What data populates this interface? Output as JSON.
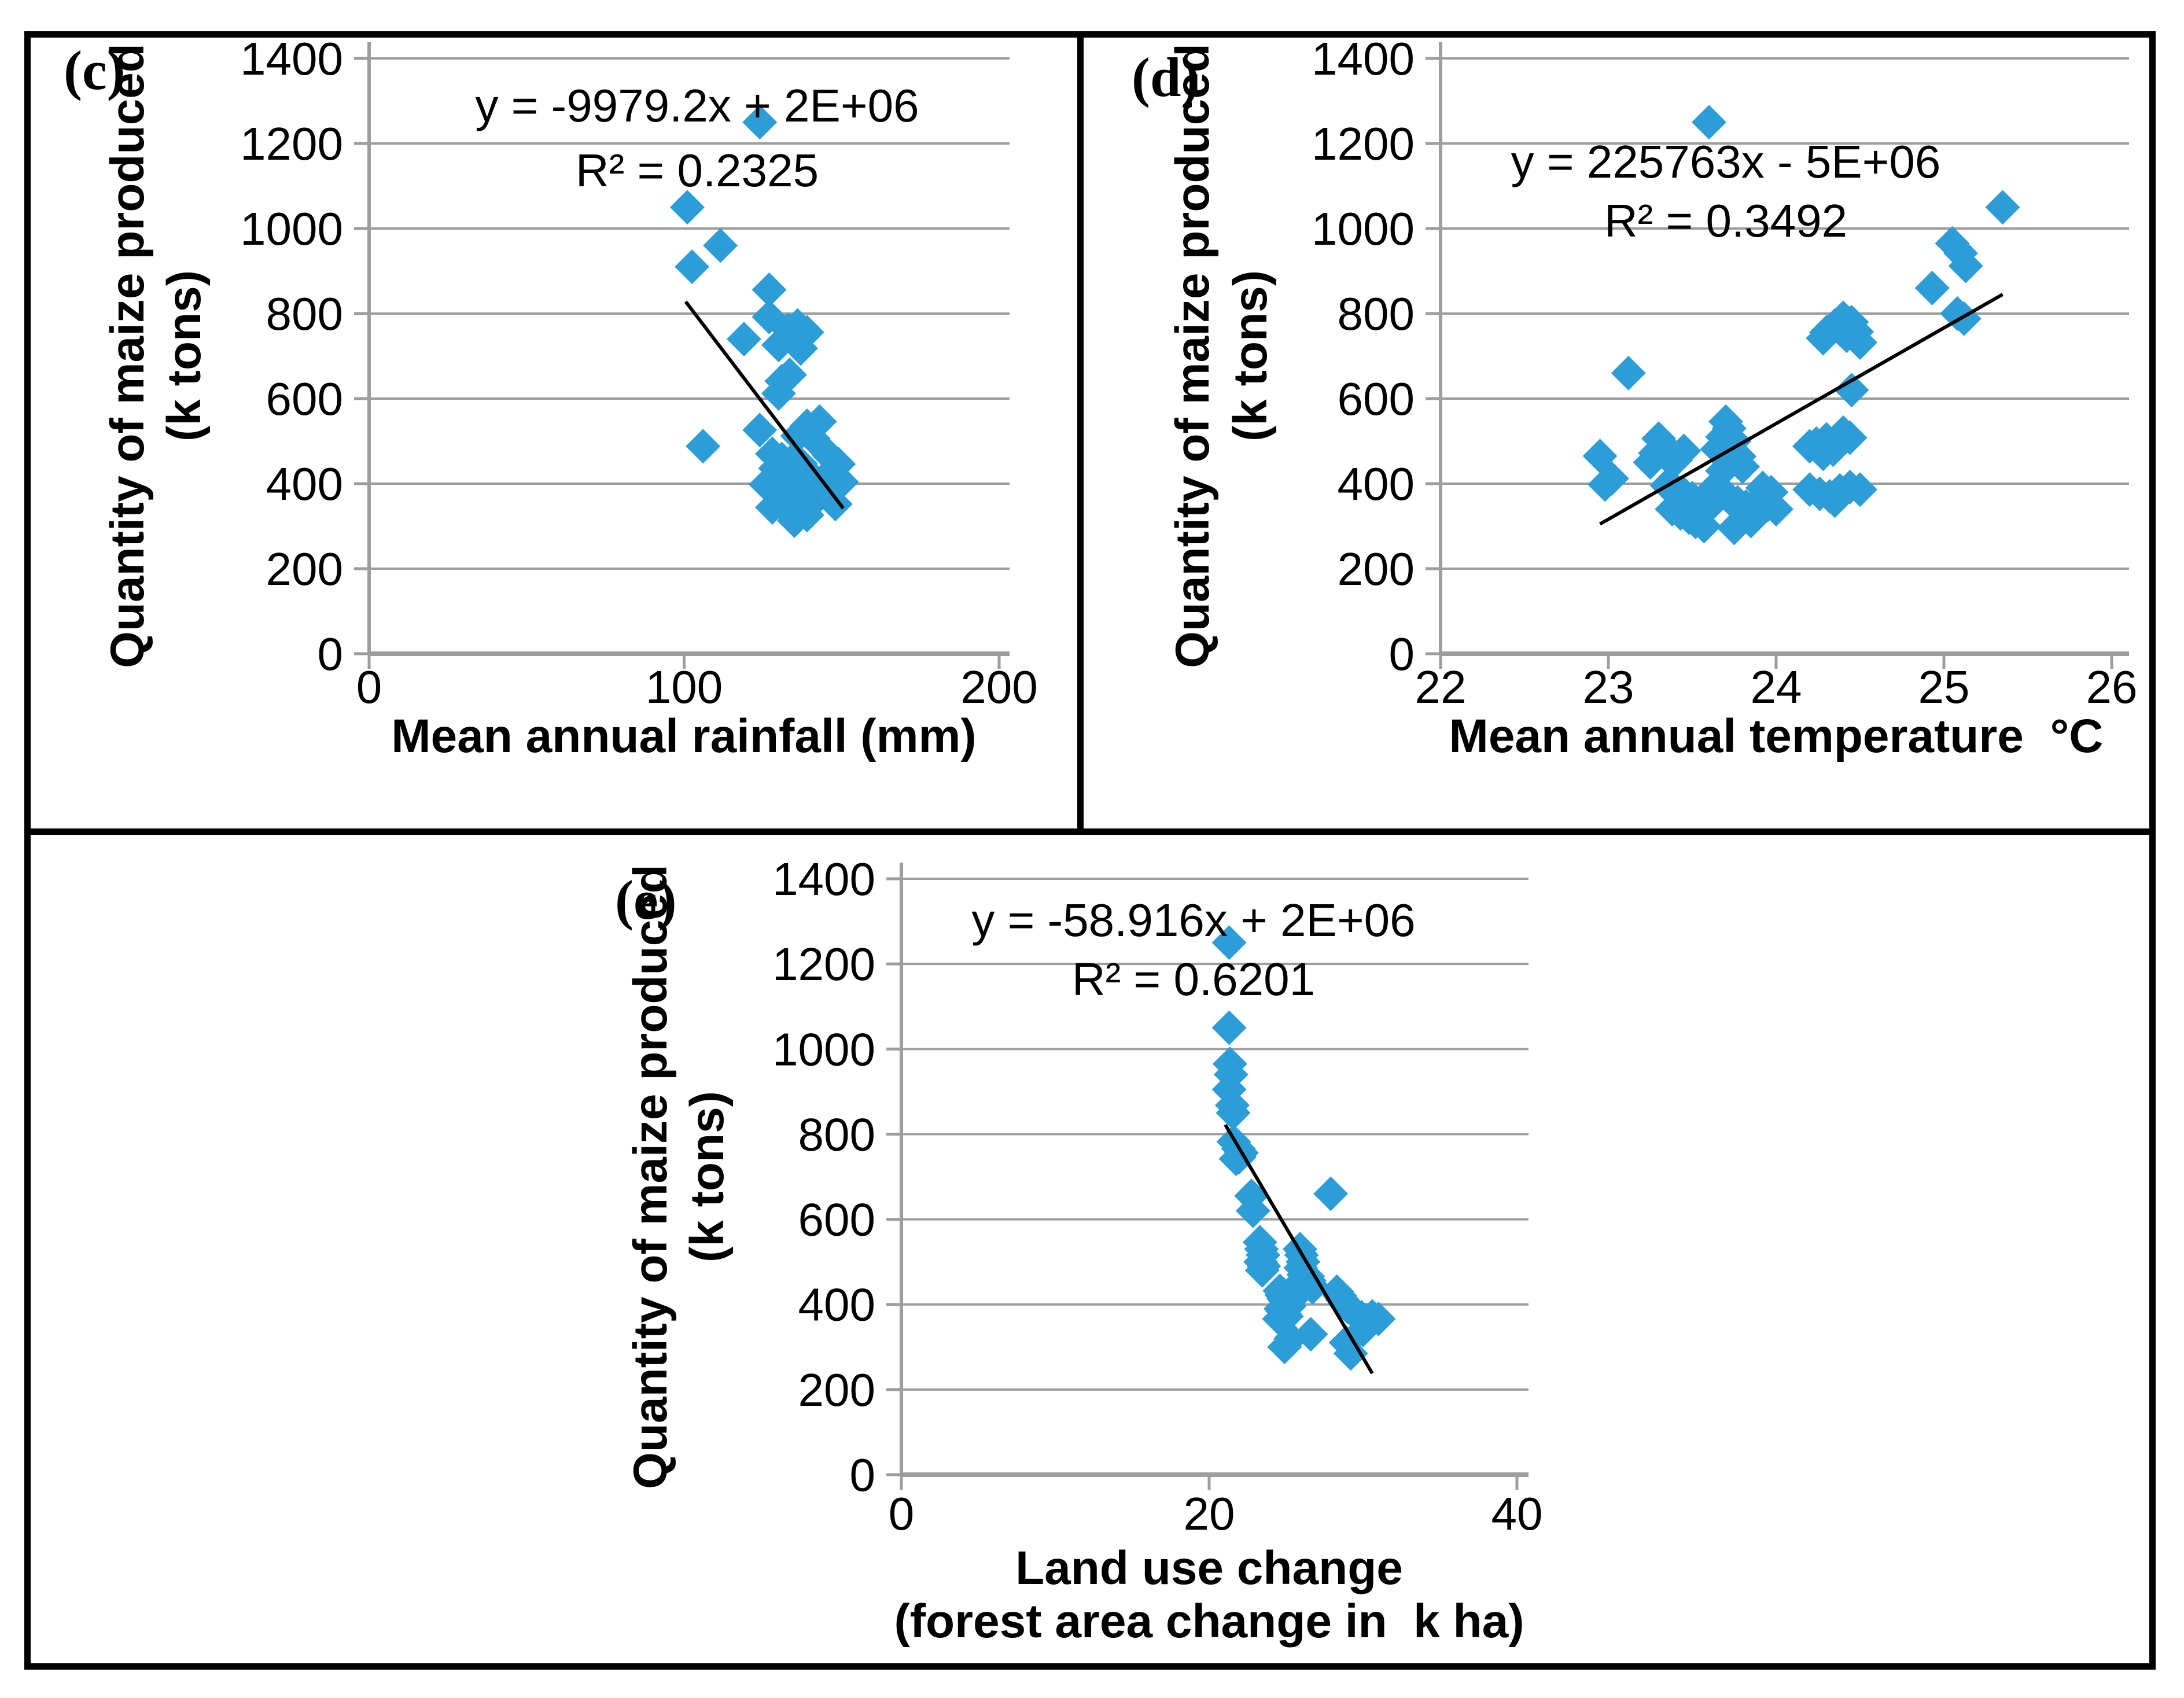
{
  "figure": {
    "background": "#ffffff",
    "border_color": "#000000",
    "marker_color": "#2D9DD8",
    "grid_color": "#9d9d9d",
    "axis_color": "#9d9d9d",
    "trend_color": "#000000",
    "text_color": "#000000"
  },
  "chart_data": [
    {
      "type": "scatter",
      "panel_label": "(c)",
      "equation": "y = -9979.2x + 2E+06",
      "r_squared": "R² = 0.2325",
      "xlabel_lines": [
        "Mean annual rainfall (mm)"
      ],
      "ylabel_lines": [
        "Quantity of maize produced",
        "(k tons)"
      ],
      "xlim": [
        0,
        200
      ],
      "ylim": [
        0,
        1400
      ],
      "x_ticks": [
        0,
        100,
        200
      ],
      "y_ticks": [
        0,
        200,
        400,
        600,
        800,
        1000,
        1200,
        1400
      ],
      "grid": true,
      "legend": "none",
      "trend": [
        [
          100.5,
          828
        ],
        [
          150.5,
          342
        ]
      ],
      "points": [
        [
          124,
          1250
        ],
        [
          101,
          1050
        ],
        [
          111.5,
          960
        ],
        [
          102.5,
          910
        ],
        [
          106,
          488
        ],
        [
          127,
          856
        ],
        [
          119,
          740
        ],
        [
          127,
          792
        ],
        [
          130,
          726
        ],
        [
          133,
          762
        ],
        [
          136,
          772
        ],
        [
          139,
          756
        ],
        [
          135,
          737
        ],
        [
          137,
          718
        ],
        [
          133.5,
          656
        ],
        [
          131,
          641
        ],
        [
          130,
          612
        ],
        [
          124,
          526
        ],
        [
          139,
          536
        ],
        [
          143,
          546
        ],
        [
          136,
          512
        ],
        [
          141,
          506
        ],
        [
          146,
          466
        ],
        [
          149,
          446
        ],
        [
          128,
          470
        ],
        [
          131,
          458
        ],
        [
          134,
          452
        ],
        [
          137,
          447
        ],
        [
          129,
          436
        ],
        [
          132,
          430
        ],
        [
          135,
          424
        ],
        [
          138,
          418
        ],
        [
          141,
          412
        ],
        [
          144,
          408
        ],
        [
          147,
          401
        ],
        [
          126,
          398
        ],
        [
          129,
          392
        ],
        [
          132,
          386
        ],
        [
          135,
          380
        ],
        [
          138,
          374
        ],
        [
          131,
          368
        ],
        [
          134,
          362
        ],
        [
          137,
          356
        ],
        [
          140,
          350
        ],
        [
          128,
          344
        ],
        [
          133,
          338
        ],
        [
          136,
          331
        ],
        [
          139,
          326
        ],
        [
          135,
          313
        ],
        [
          143,
          397
        ],
        [
          150,
          404
        ],
        [
          148,
          352
        ]
      ]
    },
    {
      "type": "scatter",
      "panel_label": "(d)",
      "equation": "y = 225763x - 5E+06",
      "r_squared": "R² = 0.3492",
      "xlabel_lines": [
        "Mean annual temperature  °C"
      ],
      "ylabel_lines": [
        "Quantity of maize produced",
        "(k tons)"
      ],
      "xlim": [
        22,
        26
      ],
      "ylim": [
        0,
        1400
      ],
      "x_ticks": [
        22,
        23,
        24,
        25,
        26
      ],
      "y_ticks": [
        0,
        200,
        400,
        600,
        800,
        1000,
        1200,
        1400
      ],
      "grid": true,
      "legend": "none",
      "trend": [
        [
          22.95,
          305
        ],
        [
          25.35,
          845
        ]
      ],
      "points": [
        [
          23.6,
          1250
        ],
        [
          25.35,
          1050
        ],
        [
          25.05,
          965
        ],
        [
          25.1,
          942
        ],
        [
          25.13,
          912
        ],
        [
          24.93,
          860
        ],
        [
          25.08,
          800
        ],
        [
          25.12,
          788
        ],
        [
          24.3,
          756
        ],
        [
          24.35,
          772
        ],
        [
          24.4,
          790
        ],
        [
          24.45,
          780
        ],
        [
          24.28,
          742
        ],
        [
          24.42,
          748
        ],
        [
          24.48,
          757
        ],
        [
          24.5,
          732
        ],
        [
          24.38,
          763
        ],
        [
          23.12,
          660
        ],
        [
          24.45,
          620
        ],
        [
          24.4,
          520
        ],
        [
          24.44,
          508
        ],
        [
          24.3,
          504
        ],
        [
          24.24,
          494
        ],
        [
          24.2,
          488
        ],
        [
          24.34,
          480
        ],
        [
          24.28,
          470
        ],
        [
          22.95,
          465
        ],
        [
          23.3,
          506
        ],
        [
          23.33,
          490
        ],
        [
          23.28,
          472
        ],
        [
          23.35,
          464
        ],
        [
          23.4,
          455
        ],
        [
          23.25,
          450
        ],
        [
          23.45,
          477
        ],
        [
          23.02,
          412
        ],
        [
          22.98,
          398
        ],
        [
          23.7,
          546
        ],
        [
          23.72,
          530
        ],
        [
          23.68,
          510
        ],
        [
          23.75,
          500
        ],
        [
          23.65,
          481
        ],
        [
          23.78,
          464
        ],
        [
          23.72,
          450
        ],
        [
          23.8,
          440
        ],
        [
          23.68,
          430
        ],
        [
          23.35,
          396
        ],
        [
          23.4,
          386
        ],
        [
          23.45,
          376
        ],
        [
          23.5,
          366
        ],
        [
          23.55,
          356
        ],
        [
          23.6,
          346
        ],
        [
          23.38,
          340
        ],
        [
          23.43,
          330
        ],
        [
          23.48,
          320
        ],
        [
          23.52,
          310
        ],
        [
          23.57,
          300
        ],
        [
          23.62,
          386
        ],
        [
          23.67,
          376
        ],
        [
          23.72,
          366
        ],
        [
          23.77,
          356
        ],
        [
          23.82,
          346
        ],
        [
          23.87,
          336
        ],
        [
          23.92,
          390
        ],
        [
          23.97,
          380
        ],
        [
          23.85,
          312
        ],
        [
          23.75,
          296
        ],
        [
          23.95,
          350
        ],
        [
          24.0,
          340
        ],
        [
          23.9,
          361
        ],
        [
          24.2,
          386
        ],
        [
          24.26,
          376
        ],
        [
          24.32,
          370
        ],
        [
          24.38,
          384
        ],
        [
          24.44,
          392
        ],
        [
          24.5,
          386
        ],
        [
          24.35,
          360
        ]
      ]
    },
    {
      "type": "scatter",
      "panel_label": "(e)",
      "equation": "y = -58.916x + 2E+06",
      "r_squared": "R² = 0.6201",
      "xlabel_lines": [
        "Land use change",
        "(forest area change in  k ha)"
      ],
      "ylabel_lines": [
        "Quantity of maize produced",
        "(k tons)"
      ],
      "xlim": [
        0,
        40
      ],
      "ylim": [
        0,
        1400
      ],
      "x_ticks": [
        0,
        20,
        40
      ],
      "y_ticks": [
        0,
        200,
        400,
        600,
        800,
        1000,
        1200,
        1400
      ],
      "grid": true,
      "legend": "none",
      "trend": [
        [
          21.05,
          822
        ],
        [
          30.6,
          238
        ]
      ],
      "points": [
        [
          21.3,
          1250
        ],
        [
          21.3,
          1050
        ],
        [
          21.35,
          965
        ],
        [
          21.42,
          940
        ],
        [
          21.3,
          905
        ],
        [
          21.5,
          868
        ],
        [
          21.56,
          850
        ],
        [
          21.6,
          782
        ],
        [
          21.9,
          766
        ],
        [
          22.1,
          756
        ],
        [
          21.75,
          742
        ],
        [
          21.95,
          746
        ],
        [
          27.9,
          660
        ],
        [
          22.75,
          655
        ],
        [
          22.85,
          620
        ],
        [
          23.3,
          546
        ],
        [
          23.4,
          530
        ],
        [
          23.5,
          516
        ],
        [
          23.35,
          500
        ],
        [
          23.55,
          490
        ],
        [
          23.45,
          480
        ],
        [
          25.9,
          530
        ],
        [
          26.0,
          516
        ],
        [
          26.1,
          500
        ],
        [
          25.95,
          486
        ],
        [
          26.15,
          470
        ],
        [
          26.05,
          456
        ],
        [
          25.85,
          446
        ],
        [
          24.6,
          432
        ],
        [
          24.72,
          422
        ],
        [
          24.84,
          414
        ],
        [
          24.96,
          408
        ],
        [
          25.08,
          402
        ],
        [
          25.2,
          396
        ],
        [
          24.66,
          390
        ],
        [
          24.78,
          384
        ],
        [
          24.9,
          378
        ],
        [
          25.02,
          372
        ],
        [
          24.56,
          366
        ],
        [
          25.3,
          420
        ],
        [
          25.42,
          414
        ],
        [
          25.52,
          434
        ],
        [
          25.62,
          426
        ],
        [
          26.4,
          466
        ],
        [
          26.5,
          456
        ],
        [
          26.62,
          446
        ],
        [
          26.72,
          440
        ],
        [
          28.3,
          430
        ],
        [
          28.5,
          420
        ],
        [
          28.64,
          412
        ],
        [
          28.82,
          402
        ],
        [
          29.0,
          394
        ],
        [
          29.3,
          386
        ],
        [
          29.6,
          376
        ],
        [
          29.9,
          370
        ],
        [
          30.2,
          364
        ],
        [
          30.6,
          372
        ],
        [
          31.0,
          366
        ],
        [
          30.0,
          340
        ],
        [
          25.3,
          320
        ],
        [
          26.6,
          330
        ],
        [
          28.9,
          310
        ],
        [
          29.2,
          285
        ],
        [
          24.9,
          300
        ]
      ]
    }
  ]
}
